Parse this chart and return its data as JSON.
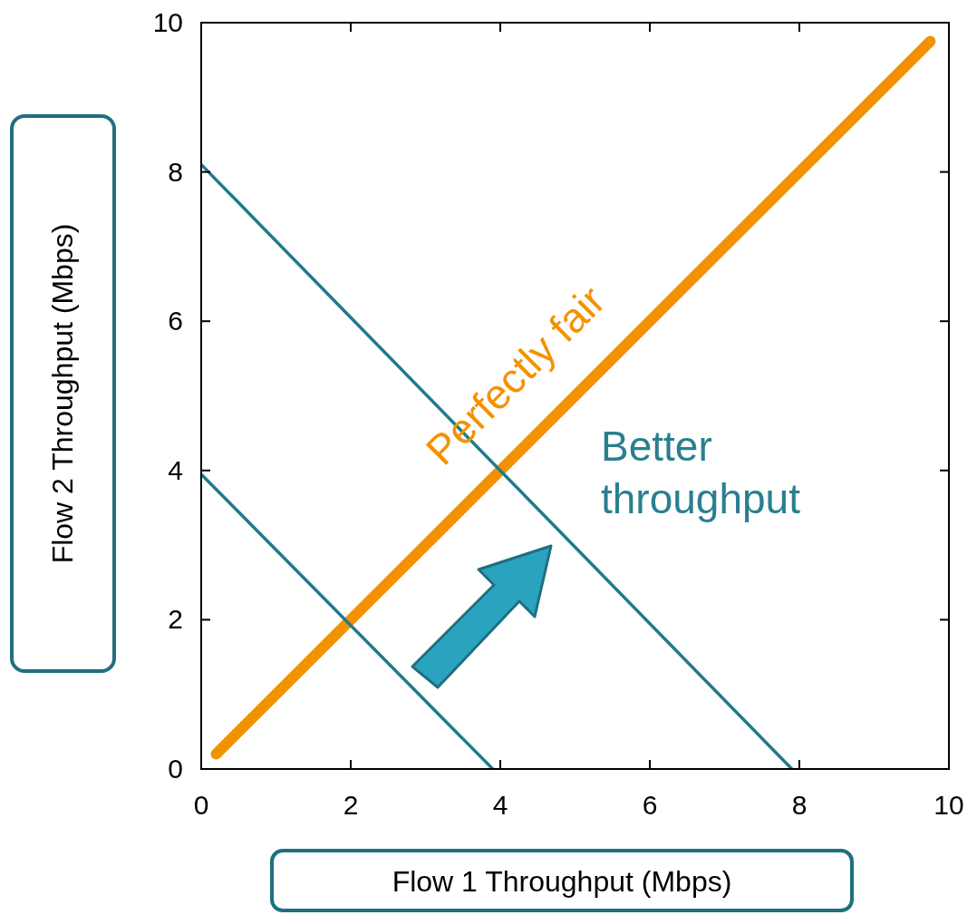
{
  "chart_data": {
    "type": "line",
    "xlabel": "Flow 1 Throughput (Mbps)",
    "ylabel": "Flow 2 Throughput (Mbps)",
    "xlim": [
      0,
      10
    ],
    "ylim": [
      0,
      10
    ],
    "xticks": [
      0,
      2,
      4,
      6,
      8,
      10
    ],
    "yticks": [
      0,
      2,
      4,
      6,
      8,
      10
    ],
    "grid": false,
    "marker": "none",
    "line_style": "solid",
    "series": [
      {
        "color": "#f39200",
        "x": [
          0.2,
          9.75
        ],
        "values": [
          0.2,
          9.75
        ]
      },
      {
        "color": "#1f7a8c",
        "x": [
          0,
          7.9
        ],
        "values": [
          8.1,
          0
        ]
      },
      {
        "color": "#1f7a8c",
        "x": [
          0,
          3.9
        ],
        "values": [
          3.95,
          0
        ]
      }
    ],
    "annotations": [
      "Perfectly fair",
      "Better\nthroughput"
    ]
  }
}
